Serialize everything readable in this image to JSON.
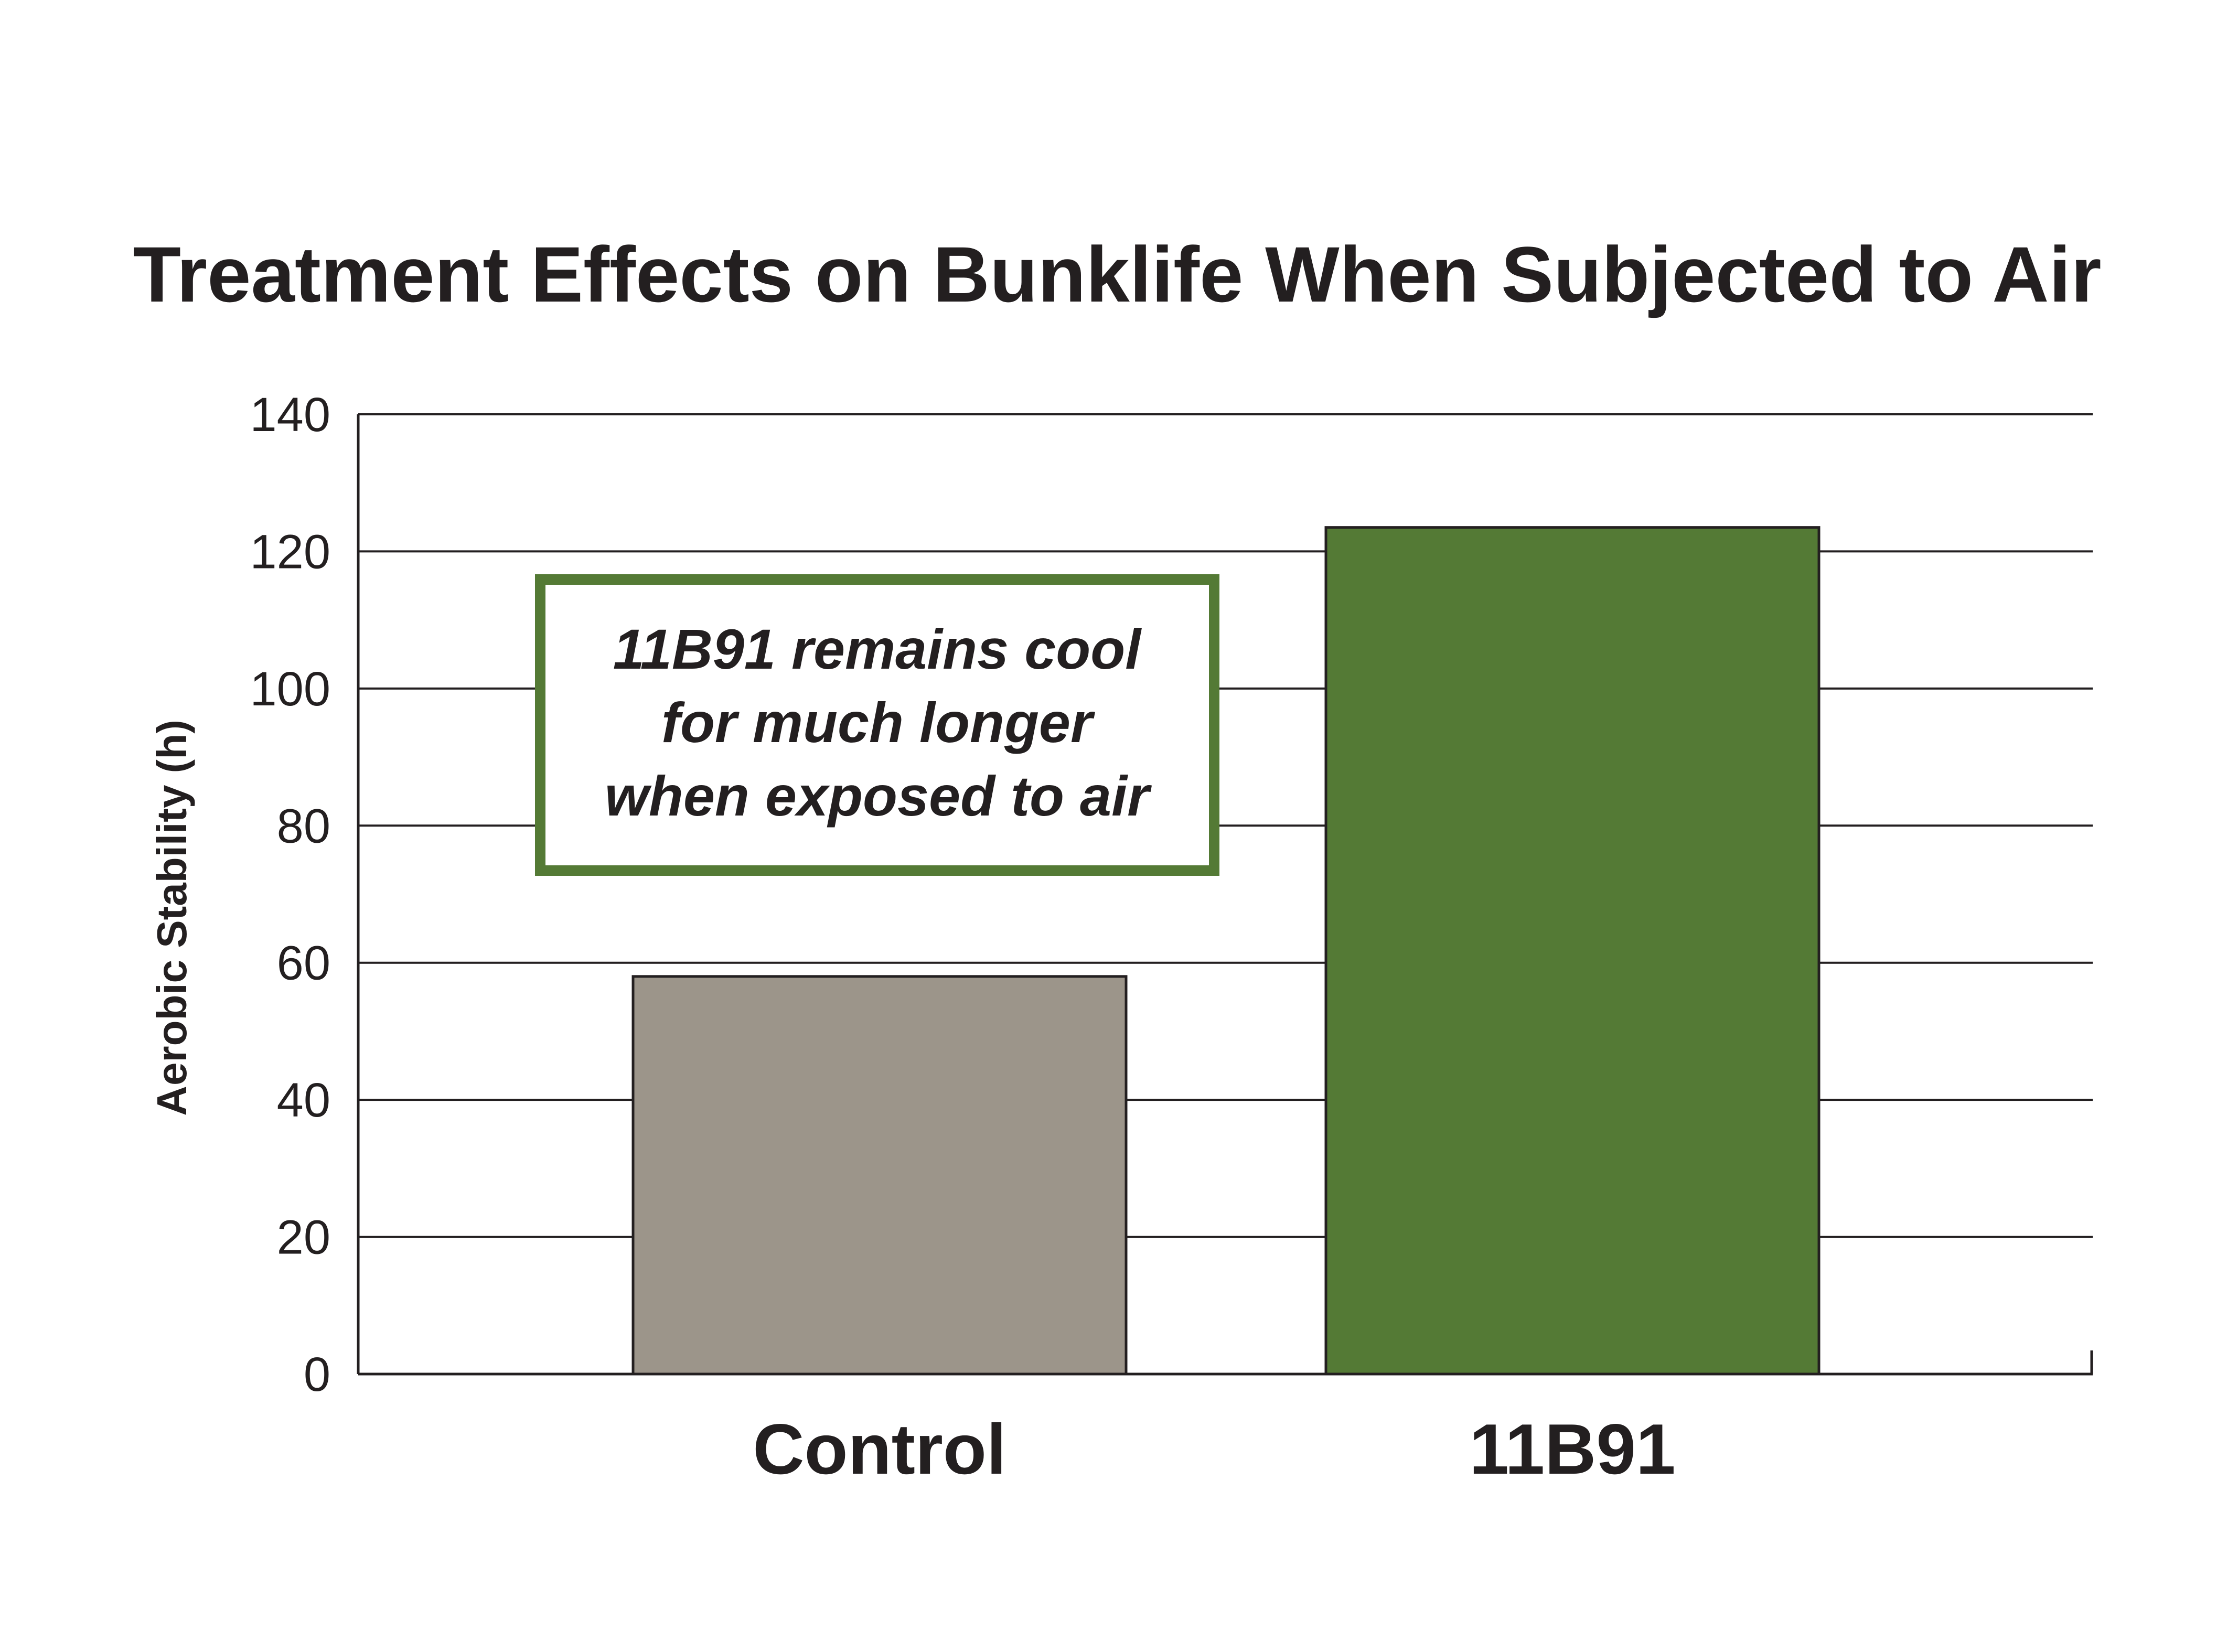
{
  "chart_data": {
    "type": "bar",
    "title": "Treatment Effects on Bunklife When Subjected to Air",
    "xlabel": "",
    "ylabel": "Aerobic Stability (h)",
    "categories": [
      "Control",
      "11B91"
    ],
    "values": [
      58,
      123.5
    ],
    "ylim": [
      0,
      140
    ],
    "yticks": [
      0,
      20,
      40,
      60,
      80,
      100,
      120,
      140
    ],
    "ytick_labels": [
      "0",
      "20",
      "40",
      "60",
      "80",
      "100",
      "120",
      "140"
    ],
    "bar_colors": [
      "#9c958a",
      "#547a35"
    ],
    "grid": true,
    "legend": false,
    "annotation": {
      "lines": [
        "11B91 remains cool",
        "for much longer",
        "when exposed to air"
      ],
      "border_color": "#547a35"
    }
  }
}
